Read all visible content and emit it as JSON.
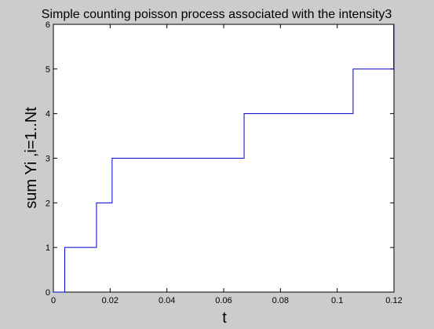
{
  "chart_data": {
    "type": "line",
    "title": "Simple counting poisson process associated with the intensity3",
    "xlabel": "t",
    "ylabel": "sum Yi ,i=1..Nt",
    "xlim": [
      0,
      0.12
    ],
    "ylim": [
      0,
      6
    ],
    "x_ticks": [
      0,
      0.02,
      0.04,
      0.06,
      0.08,
      0.1,
      0.12
    ],
    "x_tick_labels": [
      "0",
      "0.02",
      "0.04",
      "0.06",
      "0.08",
      "0.1",
      "0.12"
    ],
    "y_ticks": [
      0,
      1,
      2,
      3,
      4,
      5,
      6
    ],
    "y_tick_labels": [
      "0",
      "1",
      "2",
      "3",
      "4",
      "5",
      "6"
    ],
    "grid": false,
    "series": [
      {
        "step": "post",
        "color": "#0000cc",
        "x": [
          0,
          0.004,
          0.0152,
          0.0207,
          0.0672,
          0.1056,
          0.1199,
          0.12
        ],
        "y": [
          0,
          1,
          2,
          3,
          4,
          5,
          6,
          6
        ]
      }
    ]
  },
  "colors": {
    "figure_background": "#cccccc",
    "axes_background": "#ffffff",
    "line": "#0000cc"
  }
}
